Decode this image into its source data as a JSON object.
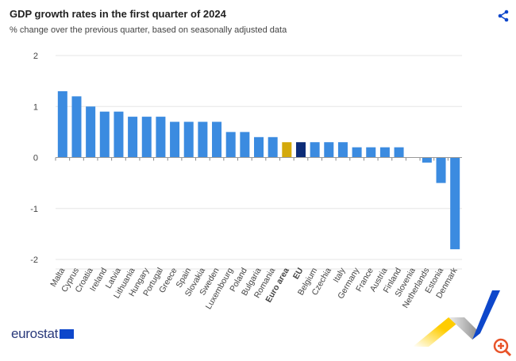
{
  "header": {
    "title": "GDP growth rates in the first quarter of 2024",
    "subtitle": "% change over the previous quarter, based on seasonally adjusted data",
    "share_icon": "share-icon"
  },
  "footer": {
    "logo_text": "eurostat",
    "zoom_icon": "zoom-in-icon"
  },
  "colors": {
    "bar": "#3b8be0",
    "euro_area": "#d4a90b",
    "eu": "#0c2c78",
    "grid": "#e6e6e6"
  },
  "chart_data": {
    "type": "bar",
    "title": "GDP growth rates in the first quarter of 2024",
    "subtitle": "% change over the previous quarter, based on seasonally adjusted data",
    "xlabel": "",
    "ylabel": "",
    "ylim": [
      -2,
      2
    ],
    "yticks": [
      2,
      1,
      0,
      -1,
      -2
    ],
    "grid": true,
    "categories": [
      "Malta",
      "Cyprus",
      "Croatia",
      "Ireland",
      "Latvia",
      "Lithuania",
      "Hungary",
      "Portugal",
      "Greece",
      "Spain",
      "Slovakia",
      "Sweden",
      "Luxembourg",
      "Poland",
      "Bulgaria",
      "Romania",
      "Euro area",
      "EU",
      "Belgium",
      "Czechia",
      "Italy",
      "Germany",
      "France",
      "Austria",
      "Finland",
      "Slovenia",
      "Netherlands",
      "Estonia",
      "Denmark"
    ],
    "values": [
      1.3,
      1.2,
      1.0,
      0.9,
      0.9,
      0.8,
      0.8,
      0.8,
      0.7,
      0.7,
      0.7,
      0.7,
      0.5,
      0.5,
      0.4,
      0.4,
      0.3,
      0.3,
      0.3,
      0.3,
      0.3,
      0.2,
      0.2,
      0.2,
      0.2,
      0.0,
      -0.1,
      -0.5,
      -1.8
    ],
    "highlighted": [
      "Euro area",
      "EU"
    ]
  }
}
